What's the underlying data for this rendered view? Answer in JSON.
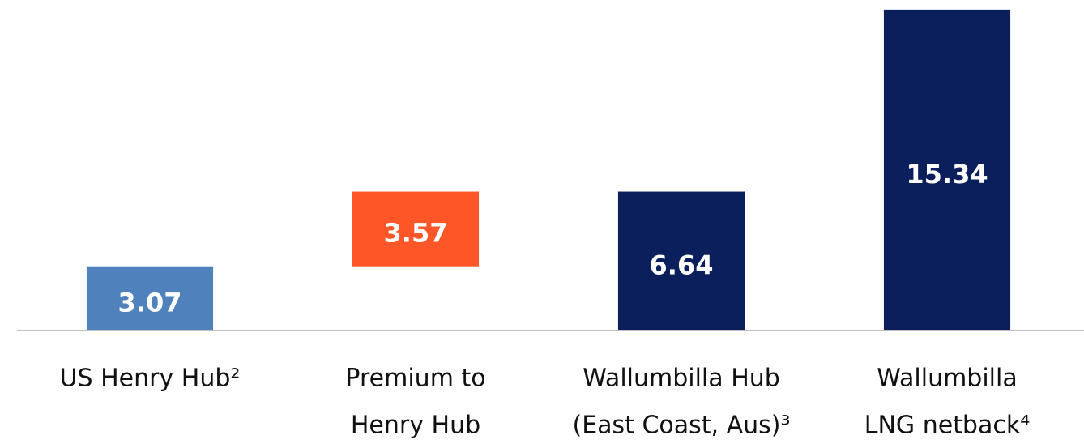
{
  "chart_data": {
    "type": "waterfall",
    "categories": [
      [
        "US Henry Hub²"
      ],
      [
        "Premium to",
        "Henry Hub"
      ],
      [
        "Wallumbilla Hub",
        "(East Coast, Aus)³"
      ],
      [
        "Wallumbilla",
        "LNG netback⁴"
      ]
    ],
    "values": [
      3.07,
      3.57,
      6.64,
      15.34
    ],
    "measure": [
      "absolute",
      "relative",
      "total",
      "absolute"
    ],
    "colors": [
      "#4f81bd",
      "#ff5628",
      "#0b1f5c",
      "#0b1f5c"
    ],
    "ylim": [
      0,
      15.8
    ]
  }
}
